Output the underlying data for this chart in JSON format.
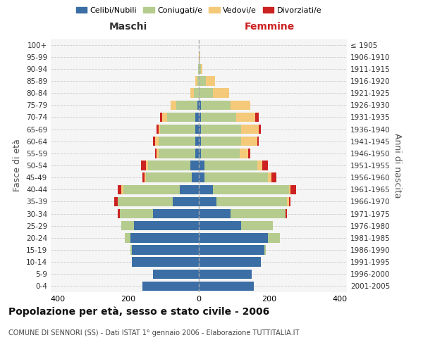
{
  "age_groups": [
    "0-4",
    "5-9",
    "10-14",
    "15-19",
    "20-24",
    "25-29",
    "30-34",
    "35-39",
    "40-44",
    "45-49",
    "50-54",
    "55-59",
    "60-64",
    "65-69",
    "70-74",
    "75-79",
    "80-84",
    "85-89",
    "90-94",
    "95-99",
    "100+"
  ],
  "birth_years": [
    "2001-2005",
    "1996-2000",
    "1991-1995",
    "1986-1990",
    "1981-1985",
    "1976-1980",
    "1971-1975",
    "1966-1970",
    "1961-1965",
    "1956-1960",
    "1951-1955",
    "1946-1950",
    "1941-1945",
    "1936-1940",
    "1931-1935",
    "1926-1930",
    "1921-1925",
    "1916-1920",
    "1911-1915",
    "1906-1910",
    "≤ 1905"
  ],
  "male": {
    "celibi": [
      160,
      130,
      190,
      190,
      195,
      185,
      130,
      75,
      55,
      20,
      25,
      10,
      10,
      10,
      10,
      5,
      0,
      0,
      0,
      0,
      0
    ],
    "coniugati": [
      0,
      0,
      0,
      5,
      15,
      35,
      95,
      155,
      160,
      130,
      120,
      105,
      105,
      100,
      80,
      60,
      15,
      5,
      2,
      0,
      0
    ],
    "vedovi": [
      0,
      0,
      0,
      0,
      0,
      0,
      0,
      0,
      5,
      5,
      5,
      5,
      10,
      5,
      15,
      15,
      10,
      5,
      0,
      0,
      0
    ],
    "divorziati": [
      0,
      0,
      0,
      0,
      0,
      0,
      5,
      10,
      10,
      5,
      15,
      5,
      5,
      5,
      5,
      0,
      0,
      0,
      0,
      0,
      0
    ]
  },
  "female": {
    "nubili": [
      155,
      150,
      175,
      185,
      195,
      120,
      90,
      50,
      40,
      15,
      15,
      5,
      5,
      5,
      5,
      5,
      0,
      0,
      0,
      0,
      0
    ],
    "coniugate": [
      0,
      0,
      0,
      5,
      35,
      90,
      155,
      200,
      215,
      180,
      150,
      110,
      115,
      115,
      100,
      85,
      40,
      20,
      5,
      2,
      0
    ],
    "vedove": [
      0,
      0,
      0,
      0,
      0,
      0,
      0,
      5,
      5,
      10,
      15,
      25,
      45,
      50,
      55,
      55,
      45,
      25,
      5,
      2,
      0
    ],
    "divorziate": [
      0,
      0,
      0,
      0,
      0,
      0,
      5,
      5,
      15,
      15,
      15,
      5,
      5,
      5,
      10,
      0,
      0,
      0,
      0,
      0,
      0
    ]
  },
  "colors": {
    "celibi": "#3a6ea5",
    "coniugati": "#b5cc8e",
    "vedovi": "#f5c97a",
    "divorziati": "#cc2222"
  },
  "xlim": 420,
  "title": "Popolazione per età, sesso e stato civile - 2006",
  "subtitle": "COMUNE DI SENNORI (SS) - Dati ISTAT 1° gennaio 2006 - Elaborazione TUTTITALIA.IT",
  "ylabel_left": "Fasce di età",
  "ylabel_right": "Anni di nascita",
  "xlabel_left": "Maschi",
  "xlabel_right": "Femmine",
  "maschi_color": "#333333",
  "femmine_color": "#cc2222",
  "bg_color": "#f5f5f5"
}
